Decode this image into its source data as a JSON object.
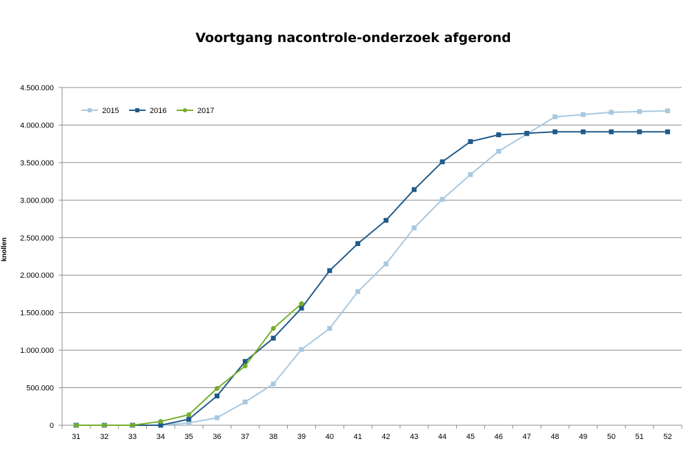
{
  "chart_data": {
    "type": "line",
    "title": "Voortgang  nacontrole-onderzoek afgerond",
    "xlabel": "",
    "ylabel": "knollen",
    "x": [
      31,
      32,
      33,
      34,
      35,
      36,
      37,
      38,
      39,
      40,
      41,
      42,
      43,
      44,
      45,
      46,
      47,
      48,
      49,
      50,
      51,
      52
    ],
    "ylim": [
      0,
      4500000
    ],
    "yticks": [
      0,
      500000,
      1000000,
      1500000,
      2000000,
      2500000,
      3000000,
      3500000,
      4000000,
      4500000
    ],
    "ytick_labels": [
      "0",
      "500.000",
      "1.000.000",
      "1.500.000",
      "2.000.000",
      "2.500.000",
      "3.000.000",
      "3.500.000",
      "4.000.000",
      "4.500.000"
    ],
    "grid": "horizontal",
    "legend_position": "top-left",
    "series": [
      {
        "name": "2015",
        "color": "#a8c8e0",
        "marker": "square",
        "values": [
          0,
          0,
          0,
          0,
          30000,
          100000,
          310000,
          550000,
          1010000,
          1290000,
          1780000,
          2150000,
          2630000,
          3010000,
          3340000,
          3650000,
          3880000,
          4110000,
          4140000,
          4170000,
          4180000,
          4190000
        ]
      },
      {
        "name": "2016",
        "color": "#1f5a8a",
        "marker": "square",
        "values": [
          0,
          0,
          0,
          0,
          80000,
          390000,
          850000,
          1160000,
          1560000,
          2060000,
          2420000,
          2730000,
          3140000,
          3510000,
          3780000,
          3870000,
          3890000,
          3910000,
          3910000,
          3910000,
          3910000,
          3910000
        ]
      },
      {
        "name": "2017",
        "color": "#76ad2a",
        "marker": "circle",
        "values": [
          0,
          0,
          0,
          50000,
          140000,
          490000,
          790000,
          1290000,
          1620000,
          null,
          null,
          null,
          null,
          null,
          null,
          null,
          null,
          null,
          null,
          null,
          null,
          null
        ]
      }
    ]
  }
}
